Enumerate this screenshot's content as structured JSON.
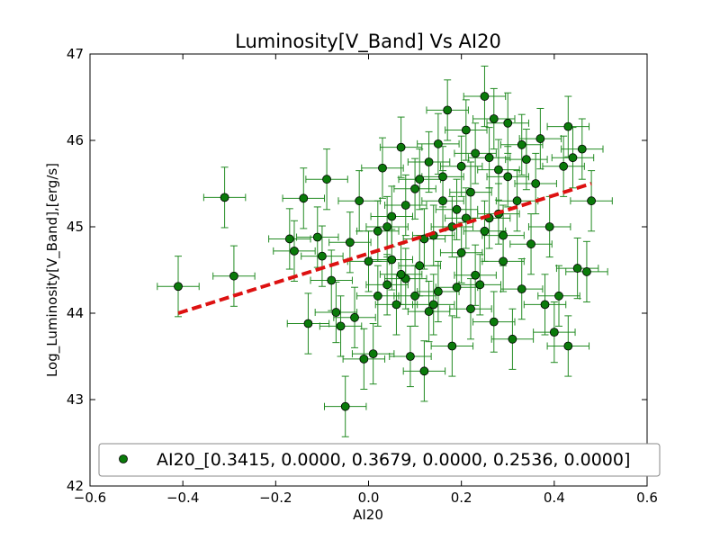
{
  "chart_data": {
    "type": "scatter",
    "title": "Luminosity[V_Band] Vs AI20",
    "xlabel": "AI20",
    "ylabel": "Log_Luminosity[V_Band],[erg/s]",
    "xlim": [
      -0.6,
      0.6
    ],
    "ylim": [
      42,
      47
    ],
    "xticks": [
      -0.6,
      -0.4,
      -0.2,
      0.0,
      0.2,
      0.4,
      0.6
    ],
    "xtick_labels": [
      "−0.6",
      "−0.4",
      "−0.2",
      "0.0",
      "0.2",
      "0.4",
      "0.6"
    ],
    "yticks": [
      42,
      43,
      44,
      45,
      46,
      47
    ],
    "ytick_labels": [
      "42",
      "43",
      "44",
      "45",
      "46",
      "47"
    ],
    "grid": false,
    "legend_position": "bottom",
    "colors": {
      "marker": "#0a7a0a",
      "errorbar": "#228b22",
      "fit_line": "#dd1111"
    },
    "series": [
      {
        "name": "AI20_[0.3415, 0.0000, 0.3679, 0.0000, 0.2536, 0.0000]",
        "kind": "scatter_errorbar",
        "x_error": 0.045,
        "y_error": 0.35,
        "points": [
          {
            "x": -0.41,
            "y": 44.31
          },
          {
            "x": -0.31,
            "y": 45.34
          },
          {
            "x": -0.29,
            "y": 44.43
          },
          {
            "x": -0.17,
            "y": 44.86
          },
          {
            "x": -0.16,
            "y": 44.72
          },
          {
            "x": -0.14,
            "y": 45.33
          },
          {
            "x": -0.13,
            "y": 43.88
          },
          {
            "x": -0.11,
            "y": 44.88
          },
          {
            "x": -0.1,
            "y": 44.66
          },
          {
            "x": -0.09,
            "y": 45.55
          },
          {
            "x": -0.08,
            "y": 44.38
          },
          {
            "x": -0.07,
            "y": 44.01
          },
          {
            "x": -0.06,
            "y": 43.85
          },
          {
            "x": -0.05,
            "y": 42.92
          },
          {
            "x": -0.04,
            "y": 44.82
          },
          {
            "x": -0.03,
            "y": 43.95
          },
          {
            "x": -0.02,
            "y": 45.3
          },
          {
            "x": -0.01,
            "y": 43.47
          },
          {
            "x": 0.0,
            "y": 44.6
          },
          {
            "x": 0.01,
            "y": 43.53
          },
          {
            "x": 0.02,
            "y": 44.2
          },
          {
            "x": 0.03,
            "y": 45.68
          },
          {
            "x": 0.04,
            "y": 44.33
          },
          {
            "x": 0.05,
            "y": 45.12
          },
          {
            "x": 0.06,
            "y": 44.1
          },
          {
            "x": 0.07,
            "y": 45.92
          },
          {
            "x": 0.08,
            "y": 44.4
          },
          {
            "x": 0.09,
            "y": 43.5
          },
          {
            "x": 0.1,
            "y": 45.44
          },
          {
            "x": 0.11,
            "y": 44.55
          },
          {
            "x": 0.12,
            "y": 43.33
          },
          {
            "x": 0.13,
            "y": 45.75
          },
          {
            "x": 0.14,
            "y": 44.9
          },
          {
            "x": 0.15,
            "y": 44.25
          },
          {
            "x": 0.16,
            "y": 45.58
          },
          {
            "x": 0.17,
            "y": 46.35
          },
          {
            "x": 0.18,
            "y": 43.62
          },
          {
            "x": 0.19,
            "y": 45.2
          },
          {
            "x": 0.2,
            "y": 44.7
          },
          {
            "x": 0.21,
            "y": 46.12
          },
          {
            "x": 0.22,
            "y": 44.05
          },
          {
            "x": 0.23,
            "y": 45.85
          },
          {
            "x": 0.24,
            "y": 44.33
          },
          {
            "x": 0.25,
            "y": 46.51
          },
          {
            "x": 0.26,
            "y": 45.1
          },
          {
            "x": 0.27,
            "y": 43.9
          },
          {
            "x": 0.28,
            "y": 45.66
          },
          {
            "x": 0.29,
            "y": 44.6
          },
          {
            "x": 0.3,
            "y": 46.2
          },
          {
            "x": 0.31,
            "y": 43.7
          },
          {
            "x": 0.32,
            "y": 45.3
          },
          {
            "x": 0.33,
            "y": 44.28
          },
          {
            "x": 0.34,
            "y": 45.78
          },
          {
            "x": 0.35,
            "y": 44.8
          },
          {
            "x": 0.36,
            "y": 45.5
          },
          {
            "x": 0.37,
            "y": 46.02
          },
          {
            "x": 0.38,
            "y": 44.1
          },
          {
            "x": 0.39,
            "y": 45.0
          },
          {
            "x": 0.4,
            "y": 43.78
          },
          {
            "x": 0.41,
            "y": 44.2
          },
          {
            "x": 0.42,
            "y": 45.7
          },
          {
            "x": 0.43,
            "y": 46.16
          },
          {
            "x": 0.43,
            "y": 43.62
          },
          {
            "x": 0.44,
            "y": 45.8
          },
          {
            "x": 0.45,
            "y": 44.52
          },
          {
            "x": 0.46,
            "y": 45.9
          },
          {
            "x": 0.47,
            "y": 44.48
          },
          {
            "x": 0.48,
            "y": 45.3
          },
          {
            "x": 0.15,
            "y": 45.96
          },
          {
            "x": 0.18,
            "y": 45.0
          },
          {
            "x": 0.22,
            "y": 45.4
          },
          {
            "x": 0.27,
            "y": 46.25
          },
          {
            "x": 0.12,
            "y": 44.86
          },
          {
            "x": 0.08,
            "y": 45.25
          },
          {
            "x": 0.05,
            "y": 44.62
          },
          {
            "x": 0.14,
            "y": 44.1
          },
          {
            "x": 0.2,
            "y": 45.7
          },
          {
            "x": 0.25,
            "y": 44.95
          },
          {
            "x": 0.3,
            "y": 45.58
          },
          {
            "x": 0.1,
            "y": 44.2
          },
          {
            "x": 0.16,
            "y": 45.3
          },
          {
            "x": 0.23,
            "y": 44.44
          },
          {
            "x": 0.28,
            "y": 45.15
          },
          {
            "x": 0.33,
            "y": 45.95
          },
          {
            "x": 0.19,
            "y": 44.3
          },
          {
            "x": 0.26,
            "y": 45.8
          },
          {
            "x": 0.11,
            "y": 45.55
          },
          {
            "x": 0.07,
            "y": 44.45
          },
          {
            "x": 0.04,
            "y": 45.0
          },
          {
            "x": 0.02,
            "y": 44.95
          },
          {
            "x": 0.13,
            "y": 44.02
          },
          {
            "x": 0.21,
            "y": 45.1
          },
          {
            "x": 0.29,
            "y": 44.9
          }
        ]
      },
      {
        "kind": "fit_line",
        "line_style": "dashed",
        "x": [
          -0.41,
          0.48
        ],
        "y": [
          44.0,
          45.5
        ]
      }
    ]
  }
}
